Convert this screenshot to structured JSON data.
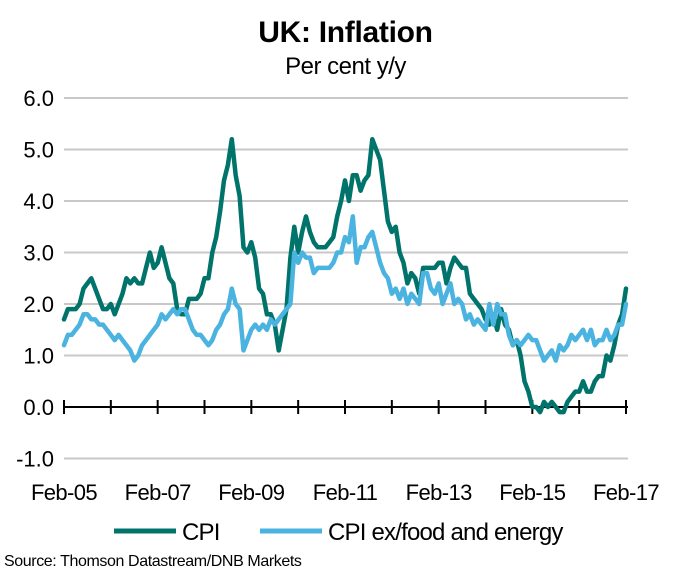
{
  "chart_data": {
    "type": "line",
    "title": "UK: Inflation",
    "subtitle": "Per cent y/y",
    "xlabel": "",
    "ylabel": "",
    "ylim": [
      -1.0,
      6.0
    ],
    "yticks": [
      "6.0",
      "5.0",
      "4.0",
      "3.0",
      "2.0",
      "1.0",
      "0.0",
      "-1.0"
    ],
    "ytick_values": [
      6,
      5,
      4,
      3,
      2,
      1,
      0,
      -1
    ],
    "xticks": [
      "Feb-05",
      "Feb-07",
      "Feb-09",
      "Feb-11",
      "Feb-13",
      "Feb-15",
      "Feb-17"
    ],
    "x_start": "Feb-05",
    "x_end": "Feb-17",
    "frequency": "monthly",
    "grid": true,
    "legend_position": "bottom",
    "series": [
      {
        "name": "CPI",
        "color": "#00736B",
        "values": [
          1.7,
          1.9,
          1.9,
          1.9,
          2.0,
          2.3,
          2.4,
          2.5,
          2.3,
          2.1,
          1.9,
          1.9,
          2.0,
          1.8,
          2.0,
          2.2,
          2.5,
          2.4,
          2.5,
          2.4,
          2.4,
          2.7,
          3.0,
          2.7,
          2.8,
          3.1,
          2.8,
          2.5,
          2.4,
          1.9,
          1.8,
          1.8,
          2.1,
          2.1,
          2.1,
          2.2,
          2.5,
          2.5,
          3.0,
          3.3,
          3.8,
          4.4,
          4.7,
          5.2,
          4.5,
          4.1,
          3.1,
          3.0,
          3.2,
          2.9,
          2.3,
          2.2,
          1.8,
          1.8,
          1.6,
          1.1,
          1.5,
          1.9,
          2.9,
          3.5,
          3.0,
          3.4,
          3.7,
          3.4,
          3.2,
          3.1,
          3.1,
          3.1,
          3.2,
          3.3,
          3.7,
          4.0,
          4.4,
          4.0,
          4.5,
          4.5,
          4.2,
          4.4,
          4.5,
          5.2,
          5.0,
          4.8,
          4.2,
          3.6,
          3.4,
          3.5,
          3.0,
          2.8,
          2.4,
          2.6,
          2.5,
          2.2,
          2.7,
          2.7,
          2.7,
          2.7,
          2.8,
          2.8,
          2.4,
          2.7,
          2.9,
          2.8,
          2.7,
          2.7,
          2.2,
          2.1,
          2.0,
          1.9,
          1.7,
          1.6,
          1.8,
          1.5,
          1.9,
          1.6,
          1.5,
          1.2,
          1.3,
          1.0,
          0.5,
          0.3,
          0.0,
          0.0,
          -0.1,
          0.1,
          0.0,
          0.1,
          0.0,
          -0.1,
          -0.1,
          0.1,
          0.2,
          0.3,
          0.3,
          0.5,
          0.3,
          0.3,
          0.5,
          0.6,
          0.6,
          1.0,
          0.9,
          1.2,
          1.6,
          1.8,
          2.3
        ]
      },
      {
        "name": "CPI ex/food and energy",
        "color": "#4BB3E0",
        "values": [
          1.2,
          1.4,
          1.4,
          1.5,
          1.6,
          1.8,
          1.8,
          1.7,
          1.7,
          1.6,
          1.6,
          1.5,
          1.4,
          1.3,
          1.4,
          1.3,
          1.2,
          1.1,
          0.9,
          1.0,
          1.2,
          1.3,
          1.4,
          1.5,
          1.6,
          1.8,
          1.7,
          1.8,
          1.9,
          1.8,
          1.9,
          1.9,
          1.7,
          1.5,
          1.4,
          1.4,
          1.3,
          1.2,
          1.3,
          1.5,
          1.6,
          1.8,
          1.9,
          2.3,
          2.0,
          1.9,
          1.1,
          1.3,
          1.5,
          1.6,
          1.5,
          1.6,
          1.5,
          1.7,
          1.6,
          1.7,
          1.8,
          1.9,
          2.0,
          3.0,
          2.8,
          3.0,
          2.9,
          2.9,
          2.6,
          2.7,
          2.7,
          2.7,
          2.7,
          2.8,
          3.0,
          3.0,
          3.3,
          3.2,
          3.7,
          2.8,
          3.1,
          3.1,
          3.3,
          3.4,
          3.1,
          2.8,
          2.6,
          2.5,
          2.2,
          2.3,
          2.1,
          2.3,
          2.0,
          2.2,
          2.1,
          2.0,
          2.6,
          2.6,
          2.3,
          2.2,
          2.4,
          2.0,
          2.2,
          2.4,
          2.0,
          2.1,
          2.0,
          1.7,
          1.8,
          1.6,
          1.7,
          1.6,
          1.5,
          2.0,
          1.6,
          2.0,
          1.8,
          1.8,
          1.4,
          1.2,
          1.3,
          1.2,
          1.3,
          1.4,
          1.3,
          1.3,
          1.1,
          0.9,
          1.0,
          1.1,
          0.9,
          1.2,
          1.1,
          1.2,
          1.4,
          1.3,
          1.4,
          1.5,
          1.3,
          1.5,
          1.2,
          1.3,
          1.3,
          1.5,
          1.3,
          1.4,
          1.6,
          1.6,
          2.0
        ]
      }
    ],
    "source": "Source:  Thomson Datastream/DNB  Markets"
  }
}
